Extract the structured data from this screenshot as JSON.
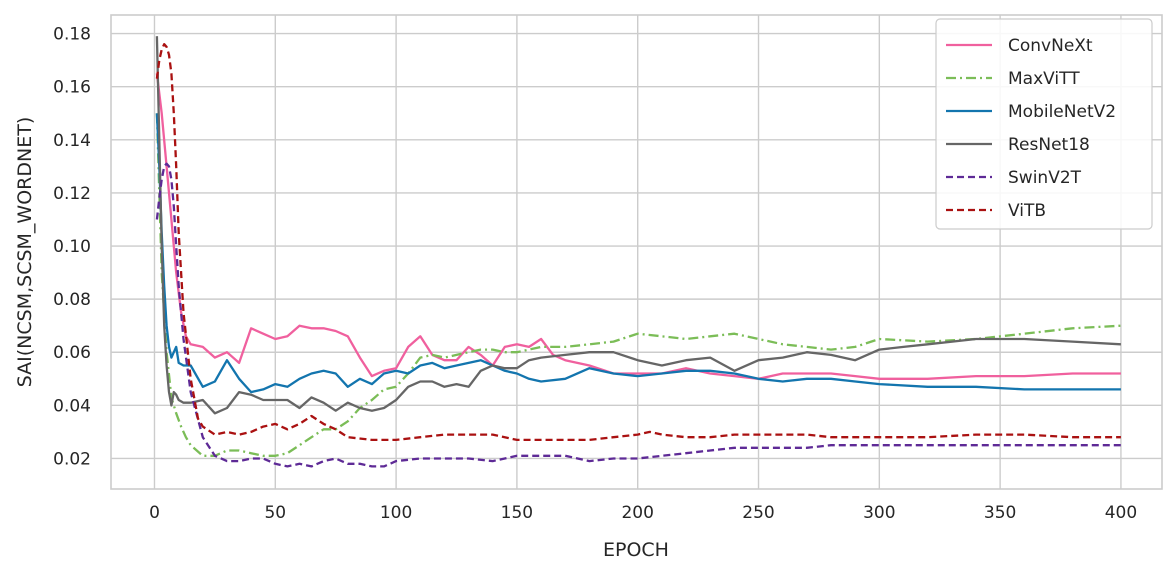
{
  "chart_data": {
    "type": "line",
    "title": "",
    "xlabel": "EPOCH",
    "ylabel": "SAI(NCSM,SCSM_WORDNET)",
    "xlim": [
      -18,
      417
    ],
    "ylim": [
      0.0085,
      0.187
    ],
    "xticks": [
      0,
      50,
      100,
      150,
      200,
      250,
      300,
      350,
      400
    ],
    "yticks": [
      0.02,
      0.04,
      0.06,
      0.08,
      0.1,
      0.12,
      0.14,
      0.16,
      0.18
    ],
    "ytick_labels": [
      "0.02",
      "0.04",
      "0.06",
      "0.08",
      "0.10",
      "0.12",
      "0.14",
      "0.16",
      "0.18"
    ],
    "grid": true,
    "legend_position": "top-right",
    "series": [
      {
        "name": "ConvNeXt",
        "color": "#f0609e",
        "dash": "solid",
        "x": [
          1,
          3,
          5,
          7,
          9,
          11,
          13,
          15,
          20,
          25,
          30,
          35,
          40,
          45,
          50,
          55,
          60,
          65,
          70,
          75,
          80,
          85,
          90,
          95,
          100,
          105,
          110,
          115,
          120,
          125,
          130,
          135,
          140,
          145,
          150,
          155,
          160,
          165,
          170,
          180,
          190,
          200,
          210,
          220,
          230,
          240,
          250,
          260,
          270,
          280,
          290,
          300,
          320,
          340,
          360,
          380,
          400
        ],
        "y": [
          0.165,
          0.15,
          0.13,
          0.11,
          0.09,
          0.075,
          0.066,
          0.063,
          0.062,
          0.058,
          0.06,
          0.056,
          0.069,
          0.067,
          0.065,
          0.066,
          0.07,
          0.069,
          0.069,
          0.068,
          0.066,
          0.058,
          0.051,
          0.053,
          0.054,
          0.062,
          0.066,
          0.059,
          0.057,
          0.057,
          0.062,
          0.059,
          0.055,
          0.062,
          0.063,
          0.062,
          0.065,
          0.059,
          0.057,
          0.055,
          0.052,
          0.052,
          0.052,
          0.054,
          0.052,
          0.051,
          0.05,
          0.052,
          0.052,
          0.052,
          0.051,
          0.05,
          0.05,
          0.051,
          0.051,
          0.052,
          0.052
        ]
      },
      {
        "name": "MaxViTT",
        "color": "#7bbd57",
        "dash": "dashdot",
        "x": [
          1,
          3,
          5,
          7,
          9,
          11,
          13,
          15,
          20,
          25,
          30,
          35,
          40,
          45,
          50,
          55,
          60,
          65,
          70,
          75,
          80,
          85,
          90,
          95,
          100,
          105,
          110,
          115,
          120,
          125,
          130,
          135,
          140,
          145,
          150,
          155,
          160,
          170,
          180,
          190,
          200,
          210,
          220,
          230,
          240,
          250,
          260,
          270,
          280,
          290,
          300,
          320,
          340,
          360,
          380,
          400
        ],
        "y": [
          0.15,
          0.09,
          0.06,
          0.043,
          0.037,
          0.032,
          0.028,
          0.025,
          0.021,
          0.021,
          0.023,
          0.023,
          0.022,
          0.021,
          0.021,
          0.022,
          0.025,
          0.028,
          0.031,
          0.031,
          0.034,
          0.039,
          0.042,
          0.046,
          0.047,
          0.052,
          0.058,
          0.059,
          0.058,
          0.059,
          0.06,
          0.061,
          0.061,
          0.06,
          0.06,
          0.061,
          0.062,
          0.062,
          0.063,
          0.064,
          0.067,
          0.066,
          0.065,
          0.066,
          0.067,
          0.065,
          0.063,
          0.062,
          0.061,
          0.062,
          0.065,
          0.064,
          0.065,
          0.067,
          0.069,
          0.07
        ]
      },
      {
        "name": "MobileNetV2",
        "color": "#1375ae",
        "dash": "solid",
        "x": [
          1,
          2,
          3,
          4,
          5,
          6,
          7,
          8,
          9,
          10,
          12,
          15,
          20,
          25,
          30,
          35,
          40,
          45,
          50,
          55,
          60,
          65,
          70,
          75,
          80,
          85,
          90,
          95,
          100,
          105,
          110,
          115,
          120,
          125,
          130,
          135,
          140,
          145,
          150,
          155,
          160,
          170,
          180,
          190,
          200,
          210,
          220,
          230,
          240,
          250,
          260,
          270,
          280,
          290,
          300,
          320,
          340,
          360,
          380,
          400
        ],
        "y": [
          0.15,
          0.13,
          0.105,
          0.085,
          0.07,
          0.062,
          0.058,
          0.06,
          0.062,
          0.056,
          0.055,
          0.055,
          0.047,
          0.049,
          0.057,
          0.05,
          0.045,
          0.046,
          0.048,
          0.047,
          0.05,
          0.052,
          0.053,
          0.052,
          0.047,
          0.05,
          0.048,
          0.052,
          0.053,
          0.052,
          0.055,
          0.056,
          0.054,
          0.055,
          0.056,
          0.057,
          0.055,
          0.053,
          0.052,
          0.05,
          0.049,
          0.05,
          0.054,
          0.052,
          0.051,
          0.052,
          0.053,
          0.053,
          0.052,
          0.05,
          0.049,
          0.05,
          0.05,
          0.049,
          0.048,
          0.047,
          0.047,
          0.046,
          0.046,
          0.046
        ]
      },
      {
        "name": "ResNet18",
        "color": "#666666",
        "dash": "solid",
        "x": [
          1,
          2,
          3,
          4,
          5,
          6,
          7,
          8,
          9,
          10,
          12,
          15,
          20,
          25,
          30,
          35,
          40,
          45,
          50,
          55,
          60,
          65,
          70,
          75,
          80,
          85,
          90,
          95,
          100,
          105,
          110,
          115,
          120,
          125,
          130,
          135,
          140,
          145,
          150,
          155,
          160,
          170,
          180,
          190,
          200,
          210,
          220,
          230,
          240,
          250,
          260,
          270,
          280,
          290,
          300,
          310,
          320,
          340,
          360,
          380,
          400
        ],
        "y": [
          0.179,
          0.14,
          0.1,
          0.07,
          0.055,
          0.045,
          0.04,
          0.045,
          0.044,
          0.042,
          0.041,
          0.041,
          0.042,
          0.037,
          0.039,
          0.045,
          0.044,
          0.042,
          0.042,
          0.042,
          0.039,
          0.043,
          0.041,
          0.038,
          0.041,
          0.039,
          0.038,
          0.039,
          0.042,
          0.047,
          0.049,
          0.049,
          0.047,
          0.048,
          0.047,
          0.053,
          0.055,
          0.054,
          0.054,
          0.057,
          0.058,
          0.059,
          0.06,
          0.06,
          0.057,
          0.055,
          0.057,
          0.058,
          0.053,
          0.057,
          0.058,
          0.06,
          0.059,
          0.057,
          0.061,
          0.062,
          0.063,
          0.065,
          0.065,
          0.064,
          0.063
        ]
      },
      {
        "name": "SwinV2T",
        "color": "#5e2a96",
        "dash": "dashed",
        "x": [
          1,
          2,
          3,
          4,
          5,
          6,
          7,
          8,
          9,
          10,
          12,
          15,
          20,
          25,
          30,
          35,
          40,
          45,
          50,
          55,
          60,
          65,
          70,
          75,
          80,
          85,
          90,
          95,
          100,
          110,
          120,
          130,
          140,
          150,
          160,
          170,
          180,
          190,
          200,
          210,
          220,
          230,
          240,
          250,
          260,
          270,
          280,
          290,
          300,
          320,
          340,
          360,
          380,
          400
        ],
        "y": [
          0.11,
          0.118,
          0.125,
          0.13,
          0.131,
          0.13,
          0.125,
          0.115,
          0.1,
          0.085,
          0.065,
          0.045,
          0.028,
          0.021,
          0.019,
          0.019,
          0.02,
          0.02,
          0.018,
          0.017,
          0.018,
          0.017,
          0.019,
          0.02,
          0.018,
          0.018,
          0.017,
          0.017,
          0.019,
          0.02,
          0.02,
          0.02,
          0.019,
          0.021,
          0.021,
          0.021,
          0.019,
          0.02,
          0.02,
          0.021,
          0.022,
          0.023,
          0.024,
          0.024,
          0.024,
          0.024,
          0.025,
          0.025,
          0.025,
          0.025,
          0.025,
          0.025,
          0.025,
          0.025
        ]
      },
      {
        "name": "ViTB",
        "color": "#aa1111",
        "dash": "dashed",
        "x": [
          1,
          2,
          3,
          4,
          5,
          6,
          7,
          8,
          9,
          10,
          12,
          15,
          18,
          20,
          25,
          30,
          35,
          40,
          45,
          50,
          55,
          60,
          65,
          70,
          75,
          80,
          90,
          100,
          110,
          120,
          130,
          140,
          150,
          160,
          170,
          180,
          190,
          200,
          205,
          210,
          220,
          230,
          240,
          250,
          260,
          270,
          280,
          290,
          300,
          320,
          340,
          360,
          380,
          400
        ],
        "y": [
          0.163,
          0.17,
          0.174,
          0.176,
          0.175,
          0.172,
          0.165,
          0.15,
          0.13,
          0.105,
          0.075,
          0.05,
          0.035,
          0.032,
          0.029,
          0.03,
          0.029,
          0.03,
          0.032,
          0.033,
          0.031,
          0.033,
          0.036,
          0.033,
          0.031,
          0.028,
          0.027,
          0.027,
          0.028,
          0.029,
          0.029,
          0.029,
          0.027,
          0.027,
          0.027,
          0.027,
          0.028,
          0.029,
          0.03,
          0.029,
          0.028,
          0.028,
          0.029,
          0.029,
          0.029,
          0.029,
          0.028,
          0.028,
          0.028,
          0.028,
          0.029,
          0.029,
          0.028,
          0.028
        ]
      }
    ]
  }
}
